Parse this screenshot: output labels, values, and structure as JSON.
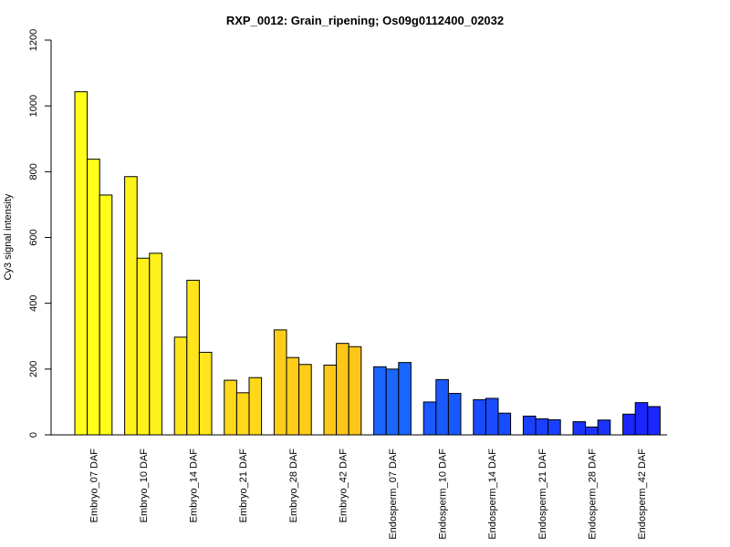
{
  "chart_data": {
    "type": "bar",
    "title": "RXP_0012: Grain_ripening; Os09g0112400_02032",
    "xlabel": "",
    "ylabel": "Cy3 signal intensity",
    "ylim": [
      0,
      1200
    ],
    "yticks": [
      0,
      200,
      400,
      600,
      800,
      1000,
      1200
    ],
    "grid": false,
    "legend": "none",
    "categories": [
      "Embryo_07 DAF",
      "Embryo_10 DAF",
      "Embryo_14 DAF",
      "Embryo_21 DAF",
      "Embryo_28 DAF",
      "Embryo_42 DAF",
      "Endosperm_07 DAF",
      "Endosperm_10 DAF",
      "Endosperm_14 DAF",
      "Endosperm_21 DAF",
      "Endosperm_28 DAF",
      "Endosperm_42 DAF"
    ],
    "group_colors": [
      "#ffff1a",
      "#fff21a",
      "#ffe51a",
      "#ffd81a",
      "#ffcc1a",
      "#ffc61a",
      "#1a66ff",
      "#1a59ff",
      "#1a4cff",
      "#1a40ff",
      "#1a33ff",
      "#1a26ff"
    ],
    "values": [
      [
        1043,
        838,
        729
      ],
      [
        785,
        537,
        552
      ],
      [
        297,
        470,
        251
      ],
      [
        166,
        128,
        174
      ],
      [
        319,
        235,
        214
      ],
      [
        212,
        278,
        268
      ],
      [
        207,
        200,
        220
      ],
      [
        100,
        168,
        126
      ],
      [
        107,
        111,
        66
      ],
      [
        57,
        49,
        46
      ],
      [
        40,
        24,
        45
      ],
      [
        63,
        98,
        86
      ]
    ]
  }
}
